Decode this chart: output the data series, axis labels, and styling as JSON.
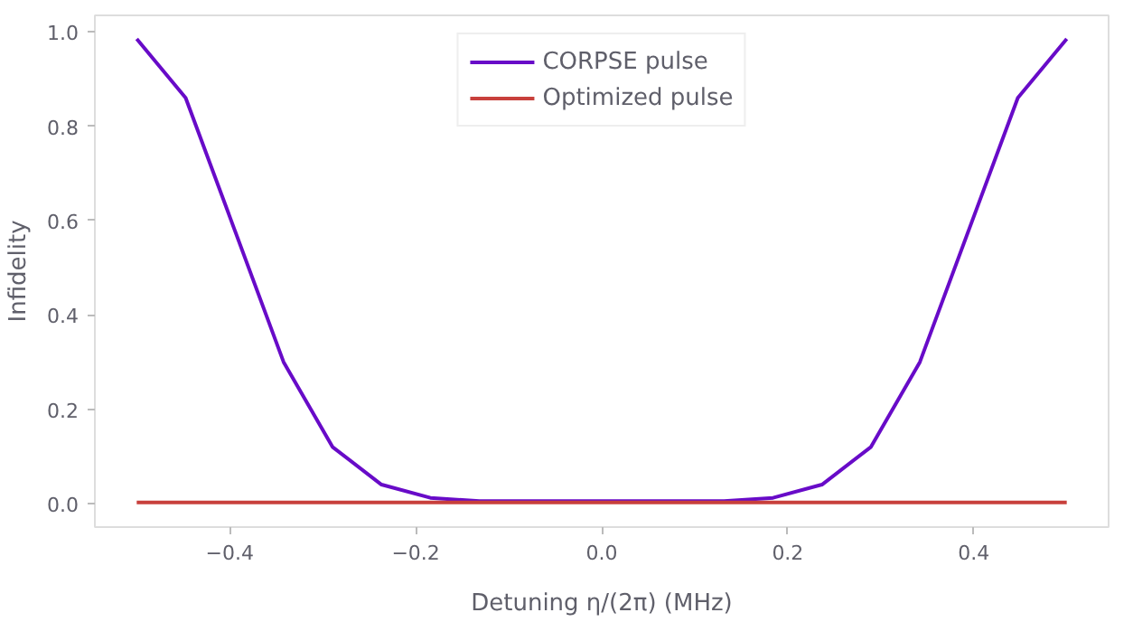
{
  "chart_data": {
    "type": "line",
    "xlabel": "Detuning η/(2π) (MHz)",
    "ylabel": "Infidelity",
    "x": [
      -0.5,
      -0.4474,
      -0.3947,
      -0.3421,
      -0.2895,
      -0.2368,
      -0.1842,
      -0.1316,
      -0.0789,
      -0.0263,
      0.0263,
      0.0789,
      0.1316,
      0.1842,
      0.2368,
      0.2895,
      0.3421,
      0.3947,
      0.4474,
      0.5
    ],
    "series": [
      {
        "name": "CORPSE pulse",
        "color": "#680bc8",
        "values": [
          0.985,
          0.86,
          0.58,
          0.3,
          0.12,
          0.04,
          0.012,
          0.005,
          0.005,
          0.005,
          0.005,
          0.005,
          0.005,
          0.012,
          0.04,
          0.12,
          0.3,
          0.58,
          0.86,
          0.985
        ]
      },
      {
        "name": "Optimized pulse",
        "color": "#c8403c",
        "values": [
          0.002,
          0.002,
          0.002,
          0.002,
          0.002,
          0.002,
          0.002,
          0.002,
          0.002,
          0.002,
          0.002,
          0.002,
          0.002,
          0.002,
          0.002,
          0.002,
          0.002,
          0.002,
          0.002,
          0.002
        ]
      }
    ],
    "xlim": [
      -0.545,
      0.545
    ],
    "ylim": [
      -0.05,
      1.035
    ],
    "xticks": [
      {
        "value": -0.4,
        "label": "−0.4"
      },
      {
        "value": -0.2,
        "label": "−0.2"
      },
      {
        "value": 0,
        "label": "0.0"
      },
      0.2,
      0.4
    ],
    "yticks": [
      {
        "value": 0,
        "label": "0.0"
      },
      0.2,
      0.4,
      0.6,
      0.8,
      {
        "value": 1,
        "label": "1.0"
      }
    ],
    "grid": false,
    "legend": "top",
    "line_style": "solid"
  }
}
